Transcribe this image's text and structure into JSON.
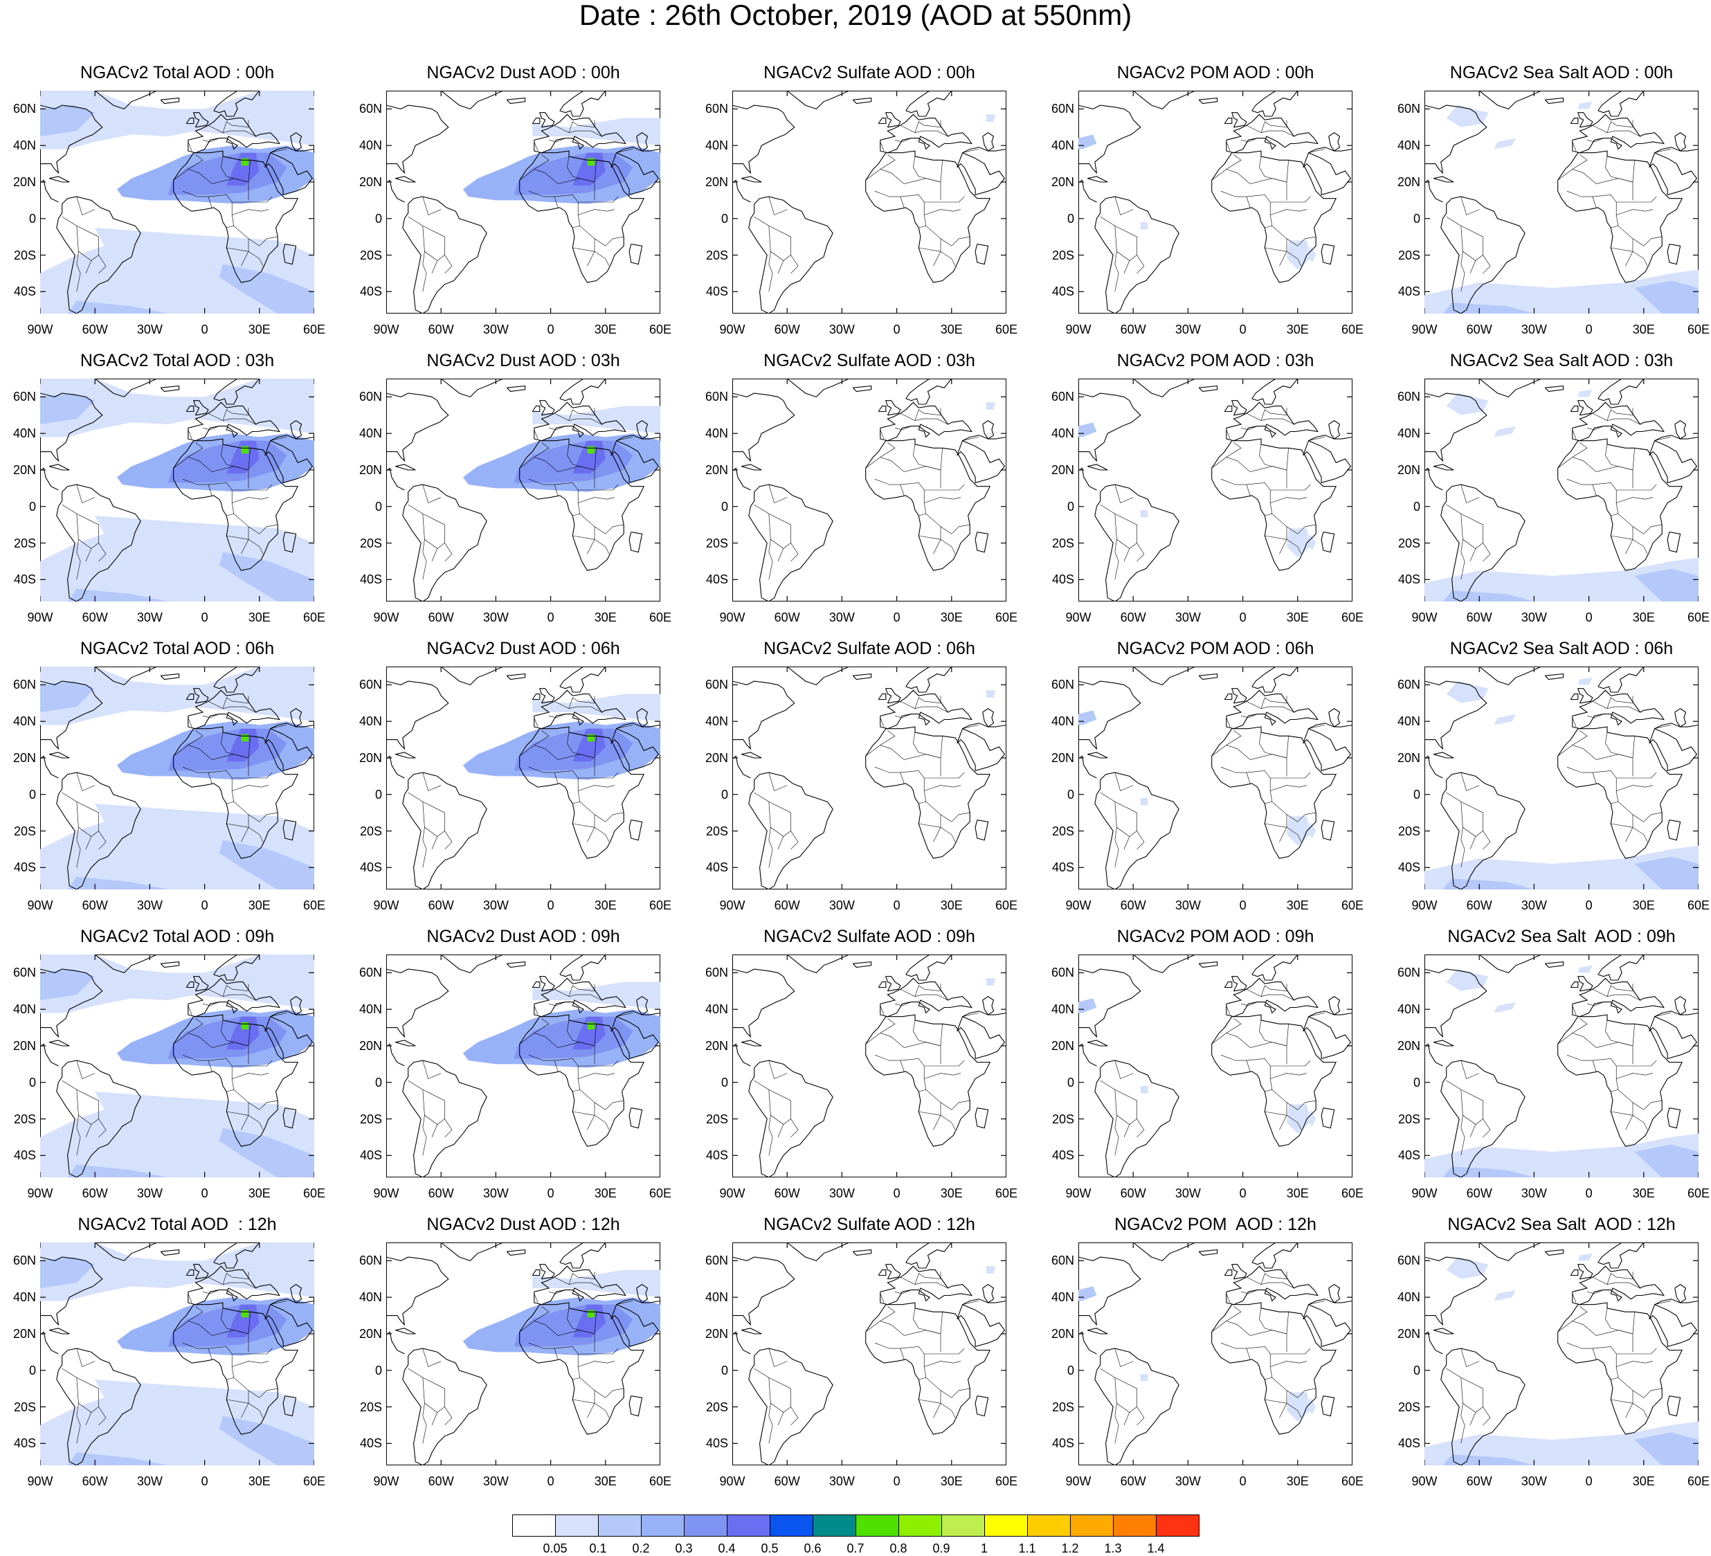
{
  "main_title": "Date : 26th October, 2019 (AOD at 550nm)",
  "panels": [
    [
      "NGACv2 Total AOD : 00h",
      "NGACv2 Dust AOD : 00h",
      "NGACv2 Sulfate AOD : 00h",
      "NGACv2 POM AOD : 00h",
      "NGACv2 Sea Salt AOD : 00h"
    ],
    [
      "NGACv2 Total AOD : 03h",
      "NGACv2 Dust AOD : 03h",
      "NGACv2 Sulfate AOD : 03h",
      "NGACv2 POM AOD : 03h",
      "NGACv2 Sea Salt AOD : 03h"
    ],
    [
      "NGACv2 Total AOD : 06h",
      "NGACv2 Dust AOD : 06h",
      "NGACv2 Sulfate AOD : 06h",
      "NGACv2 POM AOD : 06h",
      "NGACv2 Sea Salt AOD : 06h"
    ],
    [
      "NGACv2 Total AOD : 09h",
      "NGACv2 Dust AOD : 09h",
      "NGACv2 Sulfate AOD : 09h",
      "NGACv2 POM AOD : 09h",
      "NGACv2 Sea Salt  AOD : 09h"
    ],
    [
      "NGACv2 Total AOD  : 12h",
      "NGACv2 Dust AOD : 12h",
      "NGACv2 Sulfate AOD : 12h",
      "NGACv2 POM  AOD : 12h",
      "NGACv2 Sea Salt  AOD : 12h"
    ]
  ],
  "lat_labels": [
    "60N",
    "40N",
    "20N",
    "0",
    "20S",
    "40S"
  ],
  "lon_labels": [
    "90W",
    "60W",
    "30W",
    "0",
    "30E",
    "60E"
  ],
  "colorbar": {
    "colors": [
      "#ffffff",
      "#d6e1fb",
      "#b4c8f9",
      "#98b2f8",
      "#7f93f3",
      "#6a6ef0",
      "#0a55f0",
      "#008b8b",
      "#4fe000",
      "#8fef00",
      "#bfef4f",
      "#ffff00",
      "#ffcc00",
      "#ffaa00",
      "#ff7f00",
      "#ff3311"
    ],
    "labels": [
      "0.05",
      "0.1",
      "0.2",
      "0.3",
      "0.4",
      "0.5",
      "0.6",
      "0.7",
      "0.8",
      "0.9",
      "1",
      "1.1",
      "1.2",
      "1.3",
      "1.4"
    ]
  }
}
